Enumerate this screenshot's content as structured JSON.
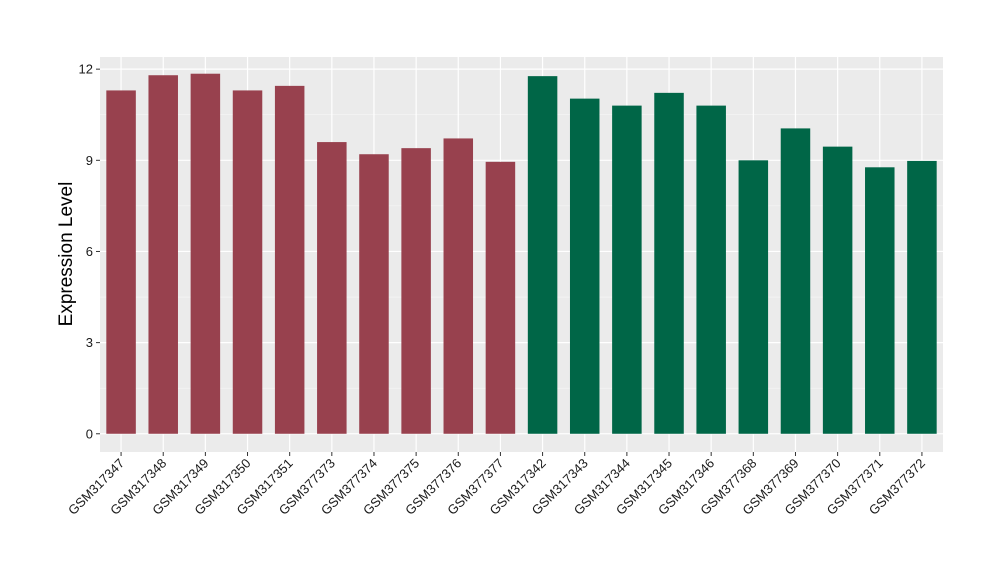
{
  "chart_data": {
    "type": "bar",
    "title": "",
    "xlabel": "",
    "ylabel": "Expression Level",
    "ylim": [
      -0.6,
      12.4
    ],
    "yticks": [
      0,
      3,
      6,
      9,
      12
    ],
    "grid": true,
    "panel_background": "#ebebeb",
    "categories": [
      "GSM317347",
      "GSM317348",
      "GSM317349",
      "GSM317350",
      "GSM317351",
      "GSM377373",
      "GSM377374",
      "GSM377375",
      "GSM377376",
      "GSM377377",
      "GSM317342",
      "GSM317343",
      "GSM317344",
      "GSM317345",
      "GSM317346",
      "GSM377368",
      "GSM377369",
      "GSM377370",
      "GSM377371",
      "GSM377372"
    ],
    "values": [
      11.3,
      11.8,
      11.85,
      11.3,
      11.45,
      9.6,
      9.2,
      9.4,
      9.72,
      8.95,
      11.77,
      11.03,
      10.8,
      11.22,
      10.8,
      9.0,
      10.05,
      9.45,
      8.77,
      8.98
    ],
    "bar_colors": [
      "#98414e",
      "#98414e",
      "#98414e",
      "#98414e",
      "#98414e",
      "#98414e",
      "#98414e",
      "#98414e",
      "#98414e",
      "#98414e",
      "#006647",
      "#006647",
      "#006647",
      "#006647",
      "#006647",
      "#006647",
      "#006647",
      "#006647",
      "#006647",
      "#006647"
    ]
  }
}
